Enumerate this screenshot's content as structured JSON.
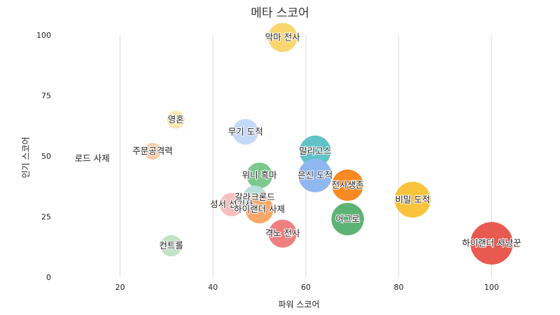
{
  "chart_data": {
    "type": "scatter",
    "title": "메타 스코어",
    "xlabel": "파워 스코어",
    "ylabel": "인기 스코어",
    "xlim": [
      8,
      109
    ],
    "ylim": [
      0,
      100
    ],
    "x_ticks": [
      20,
      40,
      60,
      80,
      100
    ],
    "y_ticks": [
      0,
      25,
      50,
      75,
      100
    ],
    "grid": {
      "vertical": true,
      "horizontal": false
    },
    "points": [
      {
        "label": "악마 전사",
        "x": 55,
        "y": 99,
        "size": 2.6,
        "color": "#f9d56e"
      },
      {
        "label": "영혼",
        "x": 32,
        "y": 65,
        "size": 1.6,
        "color": "#fde7b0"
      },
      {
        "label": "무기 도적",
        "x": 47,
        "y": 60,
        "size": 2.3,
        "color": "#c5d8f7"
      },
      {
        "label": "주문공격력",
        "x": 27,
        "y": 52,
        "size": 1.5,
        "color": "#f7cda9"
      },
      {
        "label": "말리고스",
        "x": 62,
        "y": 52,
        "size": 2.8,
        "color": "#61c2c8"
      },
      {
        "label": "로드 사제",
        "x": 14,
        "y": 49,
        "size": 0,
        "color": "#ffffff"
      },
      {
        "label": "위니 흑마",
        "x": 50,
        "y": 42,
        "size": 2.3,
        "color": "#7dc88f"
      },
      {
        "label": "은신 도적",
        "x": 62,
        "y": 42,
        "size": 3.0,
        "color": "#8fb7f2"
      },
      {
        "label": "전사생존",
        "x": 69,
        "y": 38,
        "size": 2.8,
        "color": "#f78a22"
      },
      {
        "label": "비밀 도적",
        "x": 83,
        "y": 32,
        "size": 3.2,
        "color": "#f9c43b"
      },
      {
        "label": "갈라크론드",
        "x": 49,
        "y": 33,
        "size": 2.1,
        "color": "#b7e0dc"
      },
      {
        "label": "성서 선기사",
        "x": 44,
        "y": 30,
        "size": 2.1,
        "color": "#f7c0c0"
      },
      {
        "label": "하이랜더 사제",
        "x": 50,
        "y": 28,
        "size": 2.5,
        "color": "#f9a86a"
      },
      {
        "label": "어그로",
        "x": 69,
        "y": 24,
        "size": 2.9,
        "color": "#5cb474"
      },
      {
        "label": "격노 전사",
        "x": 55,
        "y": 18,
        "size": 2.5,
        "color": "#f08080"
      },
      {
        "label": "컨트롤",
        "x": 31,
        "y": 13,
        "size": 1.9,
        "color": "#bfe3c4"
      },
      {
        "label": "하이랜더 사냥꾼",
        "x": 100,
        "y": 14,
        "size": 3.8,
        "color": "#e85a50"
      }
    ]
  }
}
